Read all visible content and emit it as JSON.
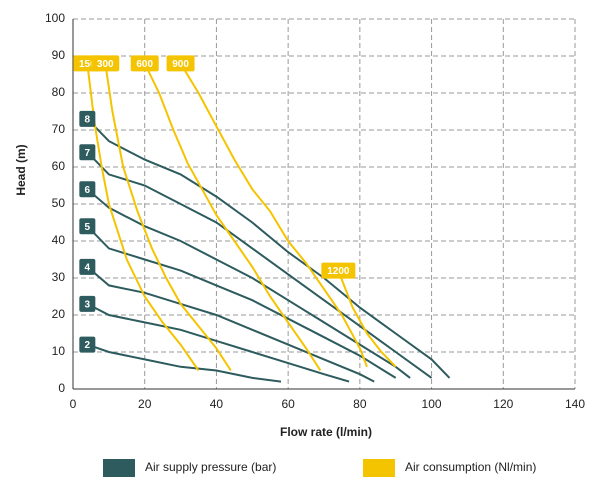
{
  "chart_data": {
    "type": "line",
    "xlabel": "Flow rate (l/min)",
    "ylabel": "Head (m)",
    "xlim": [
      0,
      140
    ],
    "ylim": [
      0,
      100
    ],
    "xticks": [
      0,
      20,
      40,
      60,
      80,
      100,
      120,
      140
    ],
    "yticks": [
      0,
      10,
      20,
      30,
      40,
      50,
      60,
      70,
      80,
      90,
      100
    ],
    "grid": true,
    "legend": [
      {
        "name": "Air supply pressure (bar)",
        "color": "#2d5b5e"
      },
      {
        "name": "Air consumption (Nl/min)",
        "color": "#f5c400"
      }
    ],
    "series": [
      {
        "name": "8",
        "color": "#2d5b5e",
        "x": [
          4,
          10,
          20,
          30,
          40,
          50,
          60,
          70,
          80,
          90,
          100,
          105
        ],
        "values": [
          73,
          67,
          62,
          58,
          52,
          45,
          37,
          30,
          22,
          15,
          8,
          3
        ]
      },
      {
        "name": "7",
        "color": "#2d5b5e",
        "x": [
          4,
          10,
          20,
          30,
          40,
          50,
          60,
          70,
          80,
          90,
          100
        ],
        "values": [
          64,
          58,
          55,
          50,
          45,
          38,
          31,
          24,
          17,
          10,
          3
        ]
      },
      {
        "name": "6",
        "color": "#2d5b5e",
        "x": [
          4,
          10,
          20,
          30,
          40,
          50,
          60,
          70,
          80,
          90,
          94
        ],
        "values": [
          54,
          49,
          44,
          40,
          35,
          30,
          24,
          18,
          12,
          6,
          3
        ]
      },
      {
        "name": "5",
        "color": "#2d5b5e",
        "x": [
          4,
          10,
          20,
          30,
          40,
          50,
          60,
          70,
          80,
          90
        ],
        "values": [
          44,
          38,
          35,
          32,
          28,
          24,
          19,
          14,
          9,
          3
        ]
      },
      {
        "name": "4",
        "color": "#2d5b5e",
        "x": [
          4,
          10,
          20,
          30,
          40,
          50,
          60,
          70,
          80,
          84
        ],
        "values": [
          33,
          28,
          26,
          23,
          20,
          16,
          12,
          8,
          4,
          2
        ]
      },
      {
        "name": "3",
        "color": "#2d5b5e",
        "x": [
          4,
          10,
          20,
          30,
          40,
          50,
          60,
          70,
          77
        ],
        "values": [
          23,
          20,
          18,
          16,
          13,
          10,
          7,
          4,
          2
        ]
      },
      {
        "name": "2",
        "color": "#2d5b5e",
        "x": [
          4,
          10,
          20,
          30,
          40,
          50,
          58
        ],
        "values": [
          12,
          10,
          8,
          6,
          5,
          3,
          2
        ]
      },
      {
        "name": "150",
        "color": "#f5c400",
        "x": [
          4,
          6,
          8,
          10,
          15,
          20,
          25,
          30,
          35
        ],
        "values": [
          88,
          72,
          60,
          50,
          35,
          25,
          18,
          12,
          5
        ]
      },
      {
        "name": "300",
        "color": "#f5c400",
        "x": [
          9,
          11,
          14,
          18,
          22,
          26,
          30,
          35,
          40,
          44
        ],
        "values": [
          88,
          75,
          60,
          48,
          38,
          30,
          23,
          17,
          11,
          5
        ]
      },
      {
        "name": "600",
        "color": "#f5c400",
        "x": [
          20,
          24,
          28,
          32,
          36,
          40,
          45,
          50,
          55,
          60,
          65,
          69
        ],
        "values": [
          88,
          80,
          70,
          61,
          54,
          47,
          40,
          33,
          25,
          18,
          11,
          5
        ]
      },
      {
        "name": "900",
        "color": "#f5c400",
        "x": [
          30,
          35,
          40,
          45,
          50,
          55,
          60,
          65,
          70,
          75,
          80,
          82
        ],
        "values": [
          88,
          80,
          71,
          62,
          54,
          48,
          40,
          34,
          27,
          20,
          11,
          6
        ]
      },
      {
        "name": "1200",
        "color": "#f5c400",
        "x": [
          74,
          78,
          82,
          86,
          90
        ],
        "values": [
          32,
          22,
          15,
          10,
          6
        ]
      }
    ]
  }
}
